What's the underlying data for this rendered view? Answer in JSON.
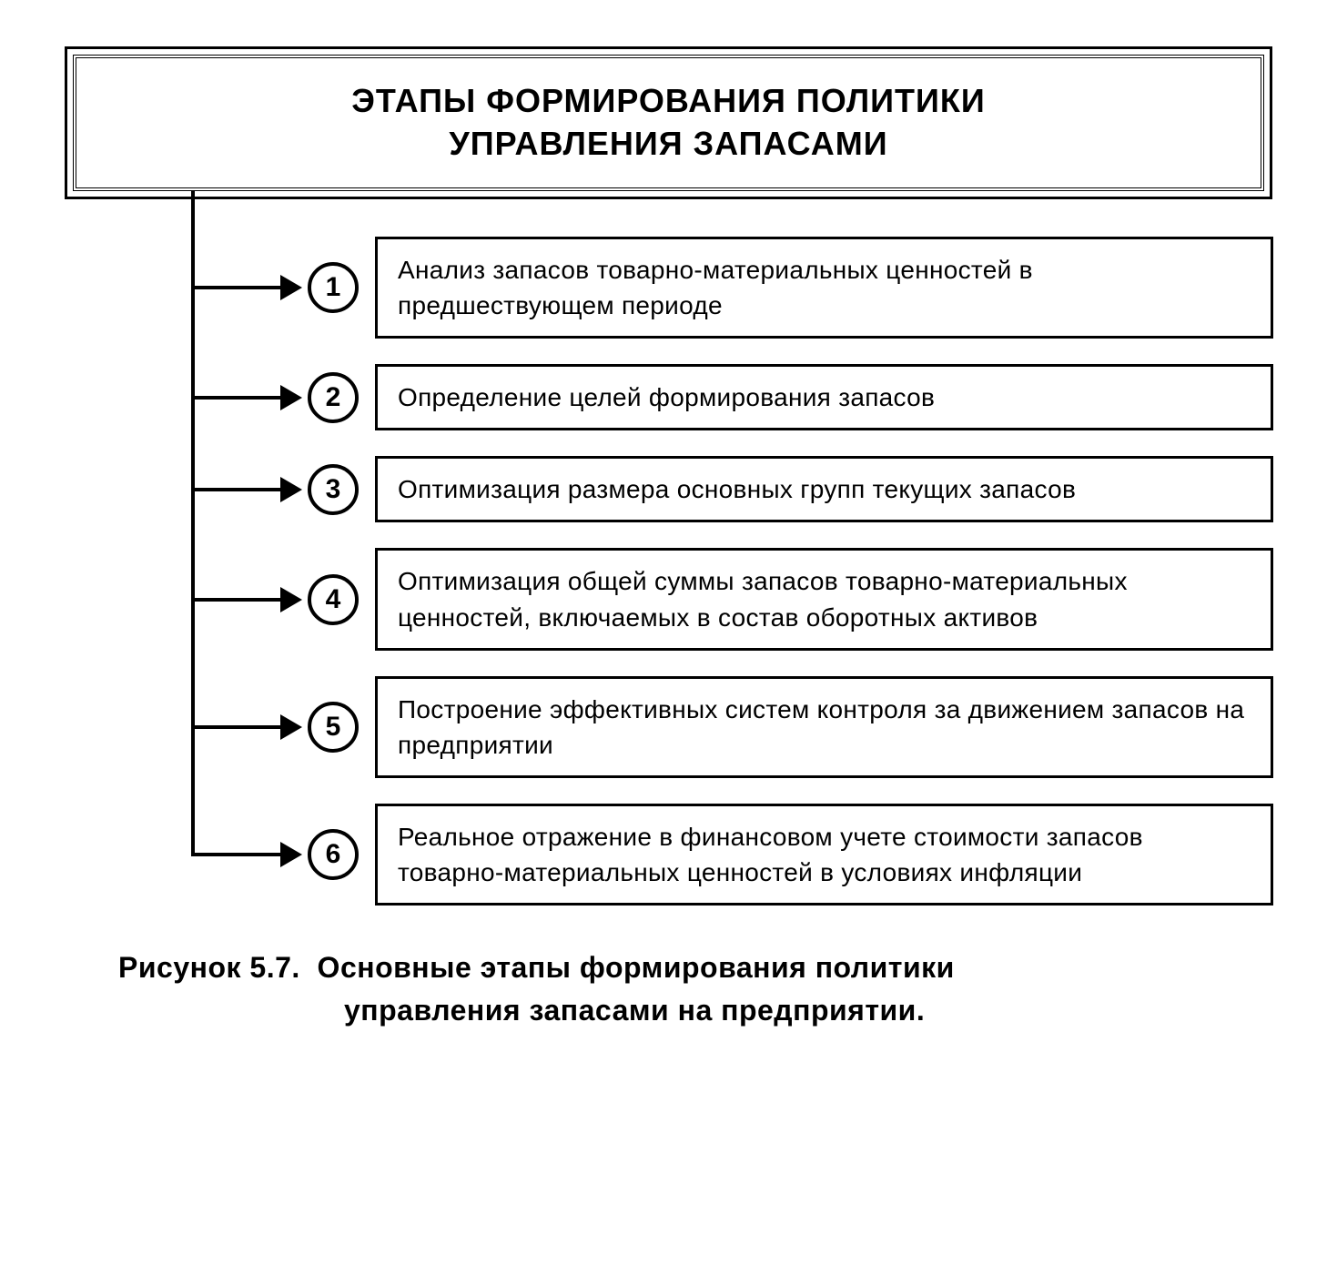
{
  "diagram": {
    "type": "flowchart",
    "header": {
      "line1": "ЭТАПЫ ФОРМИРОВАНИЯ ПОЛИТИКИ",
      "line2": "УПРАВЛЕНИЯ ЗАПАСАМИ"
    },
    "steps": [
      {
        "number": "1",
        "text": "Анализ запасов товарно-материальных ценностей в предшествующем периоде"
      },
      {
        "number": "2",
        "text": "Определение целей формирования запасов"
      },
      {
        "number": "3",
        "text": "Оптимизация размера основных групп текущих запасов"
      },
      {
        "number": "4",
        "text": "Оптимизация общей суммы запасов товарно-материальных ценностей, включаемых в состав оборотных активов"
      },
      {
        "number": "5",
        "text": "Построение эффективных систем контроля за движением запасов на предприятии"
      },
      {
        "number": "6",
        "text": "Реальное отражение в финансовом учете стоимости запасов товарно-материальных ценностей в условиях инфляции"
      }
    ],
    "caption": {
      "prefix": "Рисунок 5.7.",
      "line1_rest": "Основные этапы формирования политики",
      "line2": "управления запасами на предприятии."
    },
    "style": {
      "background_color": "#ffffff",
      "line_color": "#000000",
      "text_color": "#000000",
      "header_fontsize": 36,
      "step_fontsize": 28,
      "caption_fontsize": 32,
      "circle_diameter": 56,
      "line_width": 4,
      "box_border_width": 3
    }
  }
}
